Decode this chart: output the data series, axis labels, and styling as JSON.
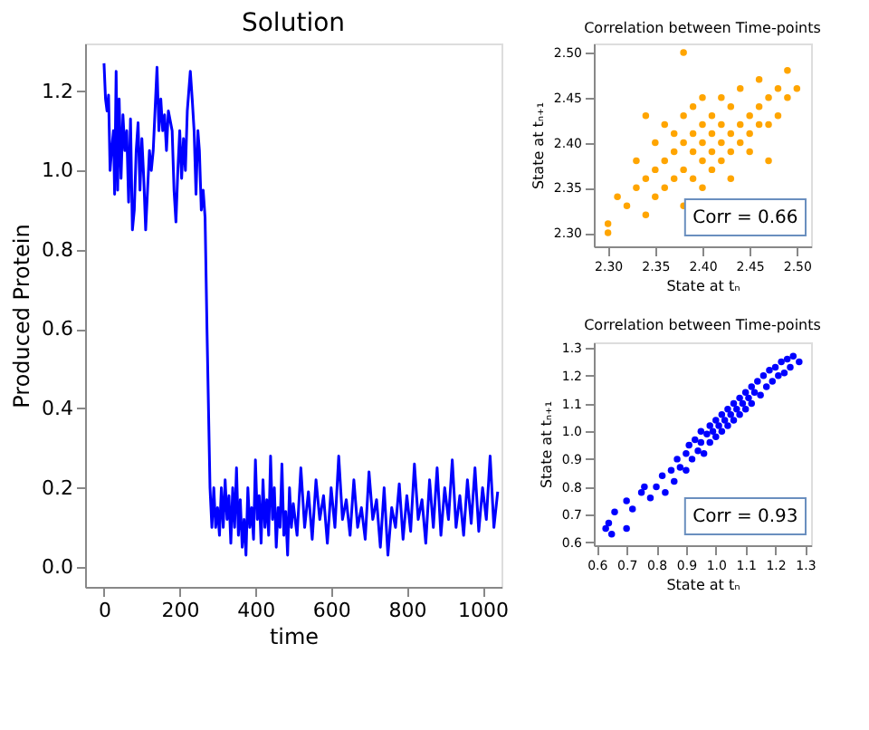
{
  "chart_data": [
    {
      "type": "line",
      "title": "Solution",
      "xlabel": "time",
      "ylabel": "Produced Protein",
      "xlim": [
        -50,
        1050
      ],
      "ylim": [
        -0.05,
        1.32
      ],
      "xticks": [
        0,
        200,
        400,
        600,
        800,
        1000
      ],
      "yticks": [
        {
          "value": 0,
          "label": "0.0"
        },
        0.2,
        0.4,
        0.6,
        0.8,
        {
          "value": 1,
          "label": "1.0"
        },
        1.2
      ],
      "grid": false,
      "series": [
        {
          "color": "#0000ff",
          "x": [
            0,
            4,
            8,
            12,
            16,
            20,
            25,
            28,
            32,
            36,
            40,
            45,
            50,
            55,
            60,
            65,
            70,
            75,
            80,
            85,
            90,
            95,
            100,
            105,
            110,
            115,
            120,
            125,
            130,
            140,
            145,
            150,
            155,
            160,
            165,
            170,
            180,
            185,
            190,
            195,
            200,
            205,
            210,
            215,
            220,
            228,
            233,
            238,
            243,
            248,
            252,
            257,
            262,
            267,
            272,
            280,
            285,
            290,
            295,
            300,
            305,
            310,
            315,
            320,
            325,
            330,
            335,
            340,
            345,
            350,
            355,
            360,
            365,
            370,
            375,
            380,
            385,
            390,
            395,
            400,
            405,
            410,
            415,
            420,
            425,
            430,
            435,
            440,
            445,
            450,
            455,
            460,
            465,
            470,
            475,
            480,
            485,
            490,
            495,
            500,
            510,
            520,
            530,
            540,
            550,
            560,
            570,
            580,
            590,
            600,
            610,
            620,
            630,
            640,
            650,
            660,
            670,
            680,
            690,
            700,
            710,
            720,
            730,
            740,
            750,
            760,
            770,
            780,
            790,
            800,
            810,
            820,
            830,
            840,
            850,
            860,
            870,
            880,
            890,
            900,
            910,
            920,
            930,
            940,
            950,
            960,
            970,
            980,
            990,
            1000,
            1010,
            1020,
            1030,
            1040
          ],
          "values": [
            1.27,
            1.18,
            1.15,
            1.19,
            1.0,
            1.05,
            1.1,
            0.94,
            1.25,
            0.95,
            1.18,
            0.98,
            1.14,
            1.05,
            1.1,
            0.92,
            1.13,
            0.85,
            0.9,
            1.05,
            1.12,
            0.95,
            1.08,
            0.98,
            0.85,
            0.95,
            1.05,
            1.0,
            1.05,
            1.26,
            1.1,
            1.18,
            1.1,
            1.14,
            1.05,
            1.15,
            1.1,
            0.95,
            0.87,
            1.0,
            1.1,
            0.98,
            1.08,
            1.0,
            1.15,
            1.25,
            1.18,
            1.1,
            0.94,
            1.1,
            1.05,
            0.9,
            0.95,
            0.88,
            0.6,
            0.2,
            0.1,
            0.2,
            0.1,
            0.15,
            0.08,
            0.2,
            0.1,
            0.22,
            0.12,
            0.18,
            0.06,
            0.2,
            0.1,
            0.25,
            0.08,
            0.17,
            0.05,
            0.12,
            0.03,
            0.2,
            0.1,
            0.15,
            0.07,
            0.27,
            0.12,
            0.18,
            0.06,
            0.22,
            0.1,
            0.17,
            0.08,
            0.28,
            0.12,
            0.2,
            0.05,
            0.15,
            0.1,
            0.26,
            0.08,
            0.14,
            0.03,
            0.2,
            0.1,
            0.16,
            0.08,
            0.25,
            0.1,
            0.19,
            0.07,
            0.22,
            0.12,
            0.18,
            0.06,
            0.2,
            0.1,
            0.28,
            0.12,
            0.17,
            0.08,
            0.22,
            0.1,
            0.15,
            0.07,
            0.24,
            0.12,
            0.17,
            0.05,
            0.2,
            0.03,
            0.15,
            0.1,
            0.21,
            0.07,
            0.18,
            0.09,
            0.26,
            0.12,
            0.17,
            0.06,
            0.22,
            0.1,
            0.25,
            0.08,
            0.2,
            0.12,
            0.27,
            0.1,
            0.18,
            0.08,
            0.22,
            0.11,
            0.25,
            0.09,
            0.2,
            0.12,
            0.28,
            0.1,
            0.19
          ]
        }
      ]
    },
    {
      "type": "scatter",
      "title": "Correlation between Time-points",
      "xlabel": "State at tₙ",
      "ylabel": "State at tₙ₊₁",
      "xlim": [
        2.285,
        2.515
      ],
      "ylim": [
        2.285,
        2.51
      ],
      "xticks": [
        {
          "value": 2.3,
          "label": "2.30"
        },
        2.35,
        {
          "value": 2.4,
          "label": "2.40"
        },
        2.45,
        {
          "value": 2.5,
          "label": "2.50"
        }
      ],
      "yticks": [
        {
          "value": 2.3,
          "label": "2.30"
        },
        2.35,
        {
          "value": 2.4,
          "label": "2.40"
        },
        2.45,
        {
          "value": 2.5,
          "label": "2.50"
        }
      ],
      "grid": false,
      "marker": "circle",
      "annotations": [
        "Corr = 0.66"
      ],
      "series": [
        {
          "color": "#ffa500",
          "x": [
            2.3,
            2.3,
            2.31,
            2.32,
            2.33,
            2.33,
            2.34,
            2.34,
            2.35,
            2.35,
            2.35,
            2.36,
            2.36,
            2.36,
            2.37,
            2.37,
            2.37,
            2.38,
            2.38,
            2.38,
            2.38,
            2.39,
            2.39,
            2.39,
            2.39,
            2.4,
            2.4,
            2.4,
            2.4,
            2.4,
            2.41,
            2.41,
            2.41,
            2.41,
            2.42,
            2.42,
            2.42,
            2.42,
            2.43,
            2.43,
            2.43,
            2.43,
            2.44,
            2.44,
            2.44,
            2.45,
            2.45,
            2.45,
            2.46,
            2.46,
            2.46,
            2.47,
            2.47,
            2.48,
            2.48,
            2.49,
            2.49,
            2.5,
            2.38,
            2.34,
            2.47
          ],
          "values": [
            2.31,
            2.3,
            2.34,
            2.33,
            2.38,
            2.35,
            2.36,
            2.32,
            2.37,
            2.4,
            2.34,
            2.38,
            2.42,
            2.35,
            2.39,
            2.36,
            2.41,
            2.4,
            2.37,
            2.43,
            2.33,
            2.39,
            2.41,
            2.36,
            2.44,
            2.4,
            2.38,
            2.42,
            2.35,
            2.45,
            2.41,
            2.39,
            2.37,
            2.43,
            2.4,
            2.42,
            2.38,
            2.45,
            2.41,
            2.39,
            2.44,
            2.36,
            2.42,
            2.4,
            2.46,
            2.43,
            2.41,
            2.39,
            2.44,
            2.47,
            2.42,
            2.45,
            2.42,
            2.46,
            2.43,
            2.48,
            2.45,
            2.46,
            2.5,
            2.43,
            2.38
          ]
        }
      ]
    },
    {
      "type": "scatter",
      "title": "Correlation between Time-points",
      "xlabel": "State at tₙ",
      "ylabel": "State at tₙ₊₁",
      "xlim": [
        0.59,
        1.32
      ],
      "ylim": [
        0.59,
        1.32
      ],
      "xticks": [
        0.6,
        0.7,
        0.8,
        0.9,
        {
          "value": 1,
          "label": "1.0"
        },
        1.1,
        1.2,
        1.3
      ],
      "yticks": [
        0.6,
        0.7,
        0.8,
        0.9,
        {
          "value": 1,
          "label": "1.0"
        },
        1.1,
        1.2,
        1.3
      ],
      "grid": false,
      "marker": "circle",
      "annotations": [
        "Corr = 0.93"
      ],
      "series": [
        {
          "color": "#0000ff",
          "x": [
            0.63,
            0.64,
            0.65,
            0.66,
            0.7,
            0.7,
            0.72,
            0.75,
            0.76,
            0.78,
            0.8,
            0.82,
            0.83,
            0.85,
            0.86,
            0.87,
            0.88,
            0.9,
            0.9,
            0.91,
            0.92,
            0.93,
            0.94,
            0.95,
            0.95,
            0.96,
            0.97,
            0.98,
            0.98,
            0.99,
            1.0,
            1.0,
            1.01,
            1.02,
            1.02,
            1.03,
            1.04,
            1.04,
            1.05,
            1.06,
            1.06,
            1.07,
            1.08,
            1.08,
            1.09,
            1.1,
            1.1,
            1.11,
            1.12,
            1.12,
            1.13,
            1.14,
            1.15,
            1.16,
            1.17,
            1.18,
            1.19,
            1.2,
            1.21,
            1.22,
            1.23,
            1.24,
            1.25,
            1.26,
            1.28
          ],
          "values": [
            0.65,
            0.67,
            0.63,
            0.71,
            0.65,
            0.75,
            0.72,
            0.78,
            0.8,
            0.76,
            0.8,
            0.84,
            0.78,
            0.86,
            0.82,
            0.9,
            0.87,
            0.92,
            0.86,
            0.95,
            0.9,
            0.97,
            0.93,
            0.96,
            1.0,
            0.92,
            0.99,
            1.02,
            0.96,
            1.0,
            1.04,
            0.98,
            1.02,
            1.06,
            1.0,
            1.04,
            1.08,
            1.02,
            1.06,
            1.1,
            1.04,
            1.08,
            1.12,
            1.06,
            1.1,
            1.14,
            1.08,
            1.12,
            1.16,
            1.1,
            1.14,
            1.18,
            1.13,
            1.2,
            1.16,
            1.22,
            1.18,
            1.23,
            1.2,
            1.25,
            1.21,
            1.26,
            1.23,
            1.27,
            1.25
          ]
        }
      ]
    }
  ]
}
